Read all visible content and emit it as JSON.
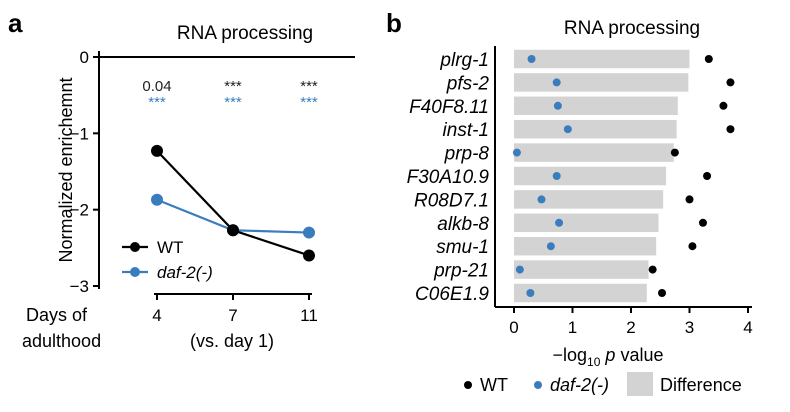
{
  "panels": {
    "a": "a",
    "b": "b"
  },
  "chart_data": [
    {
      "type": "line",
      "panel": "a",
      "title": "RNA processing",
      "ylabel": "Normalized enrichemnt",
      "xlabel_left": [
        "Days of",
        "adulthood"
      ],
      "xlabel_center": "(vs. day 1)",
      "x": [
        4,
        7,
        11
      ],
      "xticks": [
        "4",
        "7",
        "11"
      ],
      "ylim": [
        -3.05,
        0.05
      ],
      "yticks": [
        0,
        -1,
        -2,
        -3
      ],
      "ytick_labels": [
        "0",
        "−1",
        "−2",
        "−3"
      ],
      "series": [
        {
          "name": "WT",
          "color": "#000000",
          "values": [
            -1.23,
            -2.27,
            -2.6
          ]
        },
        {
          "name": "daf-2(-)",
          "color": "#3a7dbf",
          "values": [
            -1.87,
            -2.27,
            -2.3
          ]
        }
      ],
      "annotations": [
        {
          "x": 4,
          "WT": "0.04",
          "daf2": "***"
        },
        {
          "x": 7,
          "WT": "***",
          "daf2": "***"
        },
        {
          "x": 11,
          "WT": "***",
          "daf2": "***"
        }
      ],
      "legend": {
        "placement": "bottom-left"
      }
    },
    {
      "type": "bar",
      "panel": "b",
      "title": "RNA processing",
      "xlabel_parts": {
        "prefix": "−log",
        "sub": "10",
        "italic": "p",
        "suffix": " value"
      },
      "xlim": [
        -0.35,
        4.2
      ],
      "xticks": [
        0,
        1,
        2,
        3,
        4
      ],
      "xtick_labels": [
        "0",
        "1",
        "2",
        "3",
        "4"
      ],
      "categories": [
        "plrg-1",
        "pfs-2",
        "F40F8.11",
        "inst-1",
        "prp-8",
        "F30A10.9",
        "R08D7.1",
        "alkb-8",
        "smu-1",
        "prp-21",
        "C06E1.9"
      ],
      "difference": [
        3.0,
        2.98,
        2.8,
        2.78,
        2.73,
        2.6,
        2.55,
        2.47,
        2.43,
        2.3,
        2.27
      ],
      "wt": [
        3.33,
        3.7,
        3.58,
        3.7,
        2.75,
        3.3,
        3.0,
        3.23,
        3.05,
        2.37,
        2.53
      ],
      "daf2": [
        0.3,
        0.73,
        0.75,
        0.92,
        0.05,
        0.73,
        0.47,
        0.77,
        0.63,
        0.1,
        0.28
      ],
      "legend": [
        {
          "label": "WT",
          "kind": "dot",
          "color": "#000000"
        },
        {
          "label": "daf-2(-)",
          "kind": "dot",
          "color": "#3a7dbf",
          "italic": true
        },
        {
          "label": "Difference",
          "kind": "box",
          "color": "#d3d3d3"
        }
      ]
    }
  ]
}
